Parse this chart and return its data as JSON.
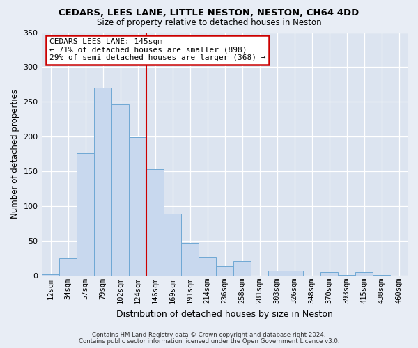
{
  "title": "CEDARS, LEES LANE, LITTLE NESTON, NESTON, CH64 4DD",
  "subtitle": "Size of property relative to detached houses in Neston",
  "xlabel": "Distribution of detached houses by size in Neston",
  "ylabel": "Number of detached properties",
  "bar_labels": [
    "12sqm",
    "34sqm",
    "57sqm",
    "79sqm",
    "102sqm",
    "124sqm",
    "146sqm",
    "169sqm",
    "191sqm",
    "214sqm",
    "236sqm",
    "258sqm",
    "281sqm",
    "303sqm",
    "326sqm",
    "348sqm",
    "370sqm",
    "393sqm",
    "415sqm",
    "438sqm",
    "460sqm"
  ],
  "bar_values": [
    2,
    25,
    176,
    270,
    246,
    199,
    153,
    89,
    47,
    27,
    14,
    21,
    0,
    7,
    7,
    0,
    5,
    1,
    5,
    1,
    0
  ],
  "bar_color": "#c8d8ee",
  "bar_edgecolor": "#6fa8d4",
  "vline_color": "#cc0000",
  "ylim": [
    0,
    350
  ],
  "yticks": [
    0,
    50,
    100,
    150,
    200,
    250,
    300,
    350
  ],
  "annotation_title": "CEDARS LEES LANE: 145sqm",
  "annotation_line1": "← 71% of detached houses are smaller (898)",
  "annotation_line2": "29% of semi-detached houses are larger (368) →",
  "annotation_box_color": "#ffffff",
  "annotation_box_edgecolor": "#cc0000",
  "footer1": "Contains HM Land Registry data © Crown copyright and database right 2024.",
  "footer2": "Contains public sector information licensed under the Open Government Licence v3.0.",
  "bg_color": "#e8edf5",
  "plot_bg_color": "#dce4f0"
}
